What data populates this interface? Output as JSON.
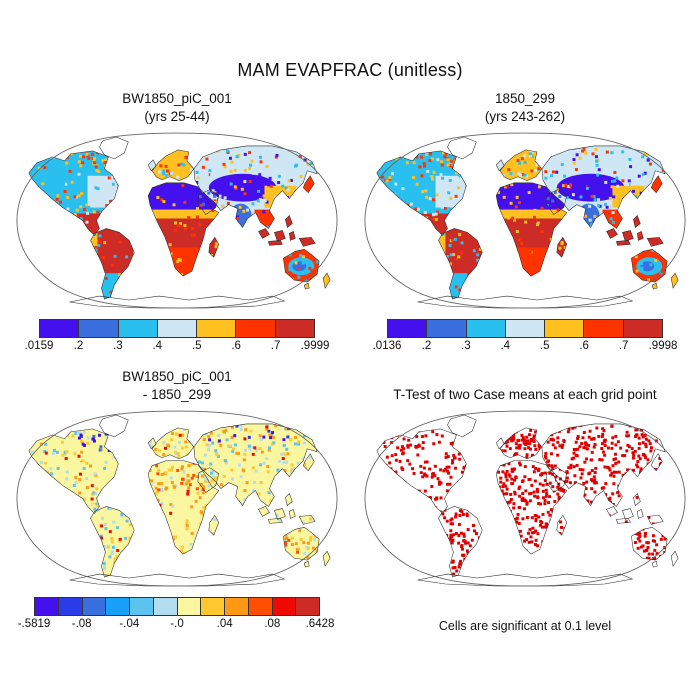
{
  "figure": {
    "title": "MAM EVAPFRAC (unitless)"
  },
  "panels": {
    "case1": {
      "title1": "BW1850_piC_001",
      "title2": "(yrs 25-44)",
      "ticks": [
        ".0159",
        ".2",
        ".3",
        ".4",
        ".5",
        ".6",
        ".7",
        ".9999"
      ]
    },
    "case2": {
      "title1": "1850_299",
      "title2": "(yrs 243-262)",
      "ticks": [
        ".0136",
        ".2",
        ".3",
        ".4",
        ".5",
        ".6",
        ".7",
        ".9998"
      ]
    },
    "diff": {
      "title1": "BW1850_piC_001",
      "title2": "- 1850_299",
      "ticks": [
        "-.5819",
        "-.08",
        "-.04",
        "-.0",
        ".04",
        ".08",
        ".6428"
      ]
    },
    "ttest": {
      "title": "T-Test of two Case means at each grid point",
      "caption": "Cells are significant at 0.1 level",
      "cell_color": "#e10000"
    }
  },
  "palettes": {
    "evapfrac": [
      "#4411ee",
      "#3b6fe0",
      "#29bfef",
      "#cfe7f5",
      "#ffc020",
      "#ff3300",
      "#cc2b26"
    ],
    "difference": [
      "#4411ee",
      "#2b3be8",
      "#3a6fe0",
      "#18a0f8",
      "#5cc2f0",
      "#b3dcf0",
      "#fbf7a0",
      "#ffc830",
      "#ff9815",
      "#ff4e00",
      "#ee0a00",
      "#cc2b26"
    ]
  },
  "chart_data": [
    {
      "type": "map",
      "projection": "robinson",
      "title": "BW1850_piC_001 (yrs 25-44)",
      "variable": "MAM EVAPFRAC (unitless)",
      "colorbar": {
        "colors": [
          "#4411ee",
          "#3b6fe0",
          "#29bfef",
          "#cfe7f5",
          "#ffc020",
          "#ff3300",
          "#cc2b26"
        ],
        "tick_labels": [
          ".0159",
          ".2",
          ".3",
          ".4",
          ".5",
          ".6",
          ".7",
          ".9999"
        ],
        "range": [
          0.0159,
          0.9999
        ]
      },
      "region_summary": {
        "sahara_arabia_central_asia": "lowest bin (violet-blue, < 0.2)",
        "amazon_congo_maritime_tropics_se_asia": "highest bin (dark red, 0.7-1.0)",
        "siberia_eastern_north_america": "0.3-0.5 (cyan / pale blue)",
        "sahel_europe_east_china_mexico_s_africa": "0.5-0.7 (orange / red)",
        "australia_interior": "0.2-0.4 (blue) with red-orange coastal fringe",
        "greenland_antarctica": "no data (white)"
      }
    },
    {
      "type": "map",
      "projection": "robinson",
      "title": "1850_299 (yrs 243-262)",
      "variable": "MAM EVAPFRAC (unitless)",
      "colorbar": {
        "colors": [
          "#4411ee",
          "#3b6fe0",
          "#29bfef",
          "#cfe7f5",
          "#ffc020",
          "#ff3300",
          "#cc2b26"
        ],
        "tick_labels": [
          ".0136",
          ".2",
          ".3",
          ".4",
          ".5",
          ".6",
          ".7",
          ".9998"
        ],
        "range": [
          0.0136,
          0.9998
        ]
      },
      "region_summary": {
        "pattern": "nearly identical spatial pattern to BW1850_piC_001 panel"
      }
    },
    {
      "type": "map",
      "projection": "robinson",
      "title": "BW1850_piC_001 - 1850_299",
      "variable": "difference of MAM EVAPFRAC",
      "colorbar": {
        "colors": [
          "#4411ee",
          "#2b3be8",
          "#3a6fe0",
          "#18a0f8",
          "#5cc2f0",
          "#b3dcf0",
          "#fbf7a0",
          "#ffc830",
          "#ff9815",
          "#ff4e00",
          "#ee0a00",
          "#cc2b26"
        ],
        "tick_labels": [
          "-.5819",
          "-.08",
          "-.04",
          "-.0",
          ".04",
          ".08",
          ".6428"
        ],
        "range": [
          -0.5819,
          0.6428
        ]
      },
      "region_summary": {
        "most_land": "small differences -0.04 to 0.04 (pale yellow / light blue mottle)",
        "sahara_europe_nw_canada_w_australia_n_russia": "positive 0.04 to >0.08 (orange/red patches)",
        "hudson_bay_arctic_canada_arctic_russia": "negative < -0.08 (blue / violet patches)"
      }
    },
    {
      "type": "map",
      "projection": "robinson",
      "title": "T-Test of two Case means at each grid point",
      "note": "Cells are significant at 0.1 level",
      "significant_cell_color": "#e10000",
      "pattern": "scattered red significant cells, densest over Africa, Europe, South Asia, Amazon and eastern South America; continents otherwise white with thin outlines"
    }
  ]
}
